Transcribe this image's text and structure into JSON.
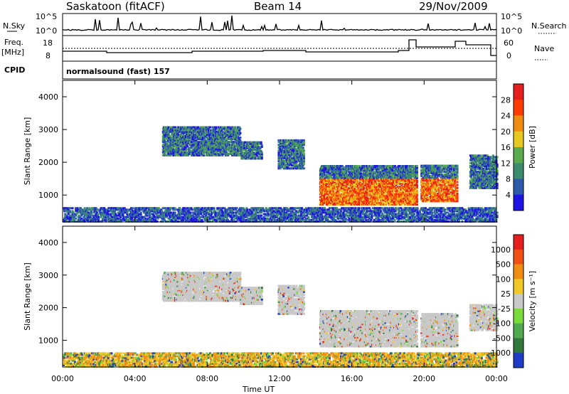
{
  "header": {
    "station": "Saskatoon (fitACF)",
    "beam": "Beam 14",
    "date": "29/Nov/2009"
  },
  "strip_labels": {
    "nsky": "N.Sky",
    "nsky_hi": "10^5",
    "nsky_lo": "10^0",
    "nsearch": "N.Search",
    "nsearch_hi": "10^5",
    "nsearch_lo": "10^0",
    "freq": "Freq.",
    "freq_unit": "[MHz]",
    "freq_hi": "18",
    "freq_lo": "8",
    "nave": "Nave",
    "nave_hi": "60",
    "nave_lo": "0",
    "cpid": "CPID",
    "program": "normalsound (fast) 157"
  },
  "chart_data": [
    {
      "type": "heatmap",
      "panel": "power",
      "ylabel": "Slant Range [km]",
      "xlabel": "",
      "ylim": [
        180,
        4500
      ],
      "y_ticks": [
        1000,
        2000,
        3000,
        4000
      ],
      "x_ticks": [
        "00:00",
        "04:00",
        "08:00",
        "12:00",
        "16:00",
        "20:00",
        "00:00"
      ],
      "colorbar": {
        "label": "Power [dB]",
        "ticks": [
          "4",
          "8",
          "12",
          "16",
          "20",
          "24",
          "28"
        ],
        "colors": [
          "#1e14e6",
          "#2d5aaa",
          "#3c8c6e",
          "#5aaa50",
          "#e6c81e",
          "#f08c14",
          "#ff3c00",
          "#e61e1e"
        ]
      },
      "echo_regions": [
        {
          "t": [
            5.5,
            9.8
          ],
          "range": [
            2200,
            3100
          ]
        },
        {
          "t": [
            9.8,
            11.0
          ],
          "range": [
            2100,
            2600
          ]
        },
        {
          "t": [
            11.9,
            13.3
          ],
          "range": [
            1800,
            2700
          ]
        },
        {
          "t": [
            14.2,
            19.6
          ],
          "range": [
            700,
            1900
          ]
        },
        {
          "t": [
            19.8,
            21.8
          ],
          "range": [
            800,
            1900
          ]
        },
        {
          "t": [
            22.5,
            24.0
          ],
          "range": [
            1200,
            2200
          ]
        },
        {
          "t": [
            0.0,
            24.0
          ],
          "range": [
            180,
            600
          ]
        }
      ]
    },
    {
      "type": "heatmap",
      "panel": "velocity",
      "ylabel": "Slant Range [km]",
      "xlabel": "Time UT",
      "ylim": [
        180,
        4500
      ],
      "y_ticks": [
        1000,
        2000,
        3000,
        4000
      ],
      "x_ticks": [
        "00:00",
        "04:00",
        "08:00",
        "12:00",
        "16:00",
        "20:00",
        "00:00"
      ],
      "colorbar": {
        "label": "Velocity [m s⁻¹]",
        "ticks": [
          "1000",
          "500",
          "100",
          "25",
          "-25",
          "-100",
          "-500",
          "-1000"
        ],
        "colors": [
          "#1e3cc8",
          "#32783c",
          "#50aa50",
          "#78dc3c",
          "#c8c8c8",
          "#f0c828",
          "#f08c14",
          "#f05014",
          "#e61e1e"
        ]
      },
      "echo_regions": [
        {
          "t": [
            5.5,
            9.8
          ],
          "range": [
            2200,
            3100
          ]
        },
        {
          "t": [
            9.8,
            11.0
          ],
          "range": [
            2100,
            2600
          ]
        },
        {
          "t": [
            11.9,
            13.3
          ],
          "range": [
            1800,
            2700
          ]
        },
        {
          "t": [
            14.2,
            19.6
          ],
          "range": [
            800,
            1900
          ]
        },
        {
          "t": [
            19.8,
            21.8
          ],
          "range": [
            800,
            1800
          ]
        },
        {
          "t": [
            22.5,
            24.0
          ],
          "range": [
            1300,
            2100
          ]
        },
        {
          "t": [
            0.0,
            24.0
          ],
          "range": [
            180,
            600
          ]
        }
      ]
    }
  ]
}
